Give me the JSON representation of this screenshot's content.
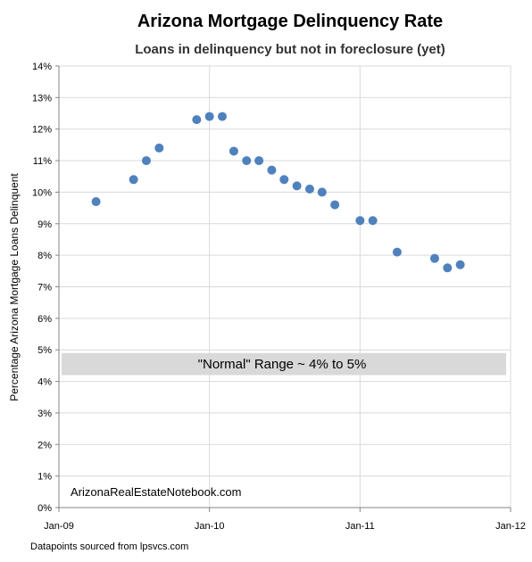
{
  "chart_data": {
    "type": "scatter",
    "title": "Arizona Mortgage Delinquency Rate",
    "subtitle": "Loans in delinquency but not in foreclosure (yet)",
    "xlabel": "",
    "ylabel": "Percentage Arizona Mortgage Loans Delinquent",
    "x_ticks": [
      "Jan-09",
      "Jan-10",
      "Jan-11",
      "Jan-12"
    ],
    "x_range": [
      "2009-01-01",
      "2012-01-01"
    ],
    "y_ticks": [
      "0%",
      "1%",
      "2%",
      "3%",
      "4%",
      "5%",
      "6%",
      "7%",
      "8%",
      "9%",
      "10%",
      "11%",
      "12%",
      "13%",
      "14%"
    ],
    "ylim": [
      0,
      14
    ],
    "grid": true,
    "marker_color": "#4f81bd",
    "points": [
      {
        "x": "2009-04-01",
        "y": 9.7
      },
      {
        "x": "2009-07-01",
        "y": 10.4
      },
      {
        "x": "2009-08-01",
        "y": 11.0
      },
      {
        "x": "2009-09-01",
        "y": 11.4
      },
      {
        "x": "2009-12-01",
        "y": 12.3
      },
      {
        "x": "2010-01-01",
        "y": 12.4
      },
      {
        "x": "2010-02-01",
        "y": 12.4
      },
      {
        "x": "2010-03-01",
        "y": 11.3
      },
      {
        "x": "2010-04-01",
        "y": 11.0
      },
      {
        "x": "2010-05-01",
        "y": 11.0
      },
      {
        "x": "2010-06-01",
        "y": 10.7
      },
      {
        "x": "2010-07-01",
        "y": 10.4
      },
      {
        "x": "2010-08-01",
        "y": 10.2
      },
      {
        "x": "2010-09-01",
        "y": 10.1
      },
      {
        "x": "2010-10-01",
        "y": 10.0
      },
      {
        "x": "2010-11-01",
        "y": 9.6
      },
      {
        "x": "2011-01-01",
        "y": 9.1
      },
      {
        "x": "2011-02-01",
        "y": 9.1
      },
      {
        "x": "2011-04-01",
        "y": 8.1
      },
      {
        "x": "2011-07-01",
        "y": 7.9
      },
      {
        "x": "2011-08-01",
        "y": 7.6
      },
      {
        "x": "2011-09-01",
        "y": 7.7
      }
    ],
    "band": {
      "label": "\"Normal\" Range ~ 4% to 5%",
      "y_from": 4.2,
      "y_to": 4.9,
      "color": "#d9d9d9"
    },
    "annotation": "ArizonaRealEstateNotebook.com",
    "footnote": "Datapoints sourced from lpsvcs.com"
  }
}
